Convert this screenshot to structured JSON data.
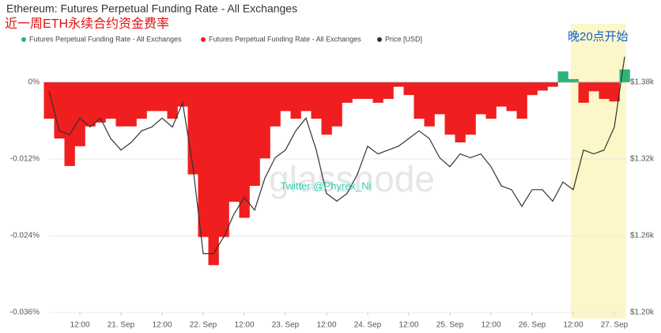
{
  "chart_data": {
    "type": "bar-line",
    "title": "Ethereum: Futures Perpetual Funding Rate - All Exchanges",
    "subtitle": "近一周ETH永续合约资金费率",
    "annotation": "晚20点开始",
    "watermarks": [
      "glassnode",
      "Twitter @Phyrex_Ni"
    ],
    "x": [
      3,
      6,
      9,
      12,
      15,
      18,
      21,
      24,
      27,
      30,
      33,
      36,
      39,
      42,
      45,
      48,
      51,
      54,
      57,
      60,
      63,
      66,
      69,
      72,
      75,
      78,
      81,
      84,
      87,
      90,
      93,
      96,
      99,
      102,
      105,
      108,
      111,
      114,
      117,
      120,
      123,
      126,
      129,
      132,
      135,
      138,
      141,
      144,
      147,
      150,
      153,
      156,
      159,
      162,
      165,
      168,
      171
    ],
    "xlim": [
      3,
      171
    ],
    "xticks": [
      {
        "value": 12,
        "label": "12:00"
      },
      {
        "value": 24,
        "label": "21. Sep"
      },
      {
        "value": 36,
        "label": "12:00"
      },
      {
        "value": 48,
        "label": "22. Sep"
      },
      {
        "value": 60,
        "label": "12:00"
      },
      {
        "value": 72,
        "label": "23. Sep"
      },
      {
        "value": 84,
        "label": "12:00"
      },
      {
        "value": 96,
        "label": "24. Sep"
      },
      {
        "value": 108,
        "label": "12:00"
      },
      {
        "value": 120,
        "label": "25. Sep"
      },
      {
        "value": 132,
        "label": "12:00"
      },
      {
        "value": 144,
        "label": "26. Sep"
      },
      {
        "value": 156,
        "label": "12:00"
      },
      {
        "value": 168,
        "label": "27. Sep"
      }
    ],
    "ylim": [
      -0.036,
      0.005
    ],
    "yticks": [
      {
        "value": 0,
        "label": "0%"
      },
      {
        "value": -0.012,
        "label": "-0.012%"
      },
      {
        "value": -0.024,
        "label": "-0.024%"
      },
      {
        "value": -0.036,
        "label": "-0.036%"
      }
    ],
    "y2lim": [
      1200,
      1405
    ],
    "y2ticks": [
      {
        "value": 1380,
        "label": "$1.38k"
      },
      {
        "value": 1320,
        "label": "$1.32k"
      },
      {
        "value": 1260,
        "label": "$1.26k"
      },
      {
        "value": 1200,
        "label": "$1.20k"
      }
    ],
    "grid": true,
    "series": [
      {
        "name": "Futures Perpetual Funding Rate - All Exchanges",
        "color": "#2db47a",
        "kind": "bar",
        "values": [
          null,
          null,
          null,
          null,
          null,
          null,
          null,
          null,
          null,
          null,
          null,
          null,
          null,
          null,
          null,
          null,
          null,
          null,
          null,
          null,
          null,
          null,
          null,
          null,
          null,
          null,
          null,
          null,
          null,
          null,
          null,
          null,
          null,
          null,
          null,
          null,
          null,
          null,
          null,
          null,
          null,
          null,
          null,
          null,
          null,
          null,
          null,
          null,
          null,
          null,
          0.0017,
          0.0005,
          null,
          null,
          null,
          null,
          0.002
        ]
      },
      {
        "name": "Futures Perpetual Funding Rate - All Exchanges",
        "color": "#f01e1e",
        "kind": "bar",
        "values": [
          -0.0057,
          -0.0088,
          -0.0131,
          -0.01,
          -0.0069,
          -0.0063,
          -0.0057,
          -0.0069,
          -0.0069,
          -0.0057,
          -0.0045,
          -0.0045,
          -0.0057,
          -0.0038,
          -0.0144,
          -0.0242,
          -0.0286,
          -0.0242,
          -0.0187,
          -0.0212,
          -0.0162,
          -0.0119,
          -0.0069,
          -0.0045,
          -0.0057,
          -0.0045,
          -0.0057,
          -0.0082,
          -0.0069,
          -0.0032,
          -0.0026,
          -0.0026,
          -0.0032,
          -0.0026,
          -0.0007,
          -0.002,
          -0.0057,
          -0.0069,
          -0.005,
          -0.0082,
          -0.0094,
          -0.0082,
          -0.005,
          -0.0057,
          -0.0038,
          -0.0045,
          -0.0057,
          -0.002,
          -0.0013,
          -0.0007,
          null,
          null,
          -0.0032,
          -0.0014,
          -0.0026,
          -0.003,
          null
        ]
      },
      {
        "name": "Price [USD]",
        "color": "#333333",
        "kind": "line",
        "axis": "y2",
        "values": [
          1373,
          1342,
          1339,
          1352,
          1345,
          1352,
          1336,
          1327,
          1333,
          1342,
          1345,
          1352,
          1345,
          1364,
          1314,
          1246,
          1246,
          1259,
          1277,
          1290,
          1280,
          1305,
          1321,
          1327,
          1342,
          1352,
          1327,
          1293,
          1287,
          1293,
          1308,
          1330,
          1324,
          1327,
          1330,
          1336,
          1342,
          1336,
          1321,
          1314,
          1324,
          1321,
          1324,
          1314,
          1299,
          1296,
          1283,
          1296,
          1296,
          1287,
          1302,
          1296,
          1327,
          1324,
          1327,
          1345,
          1400
        ]
      }
    ]
  }
}
